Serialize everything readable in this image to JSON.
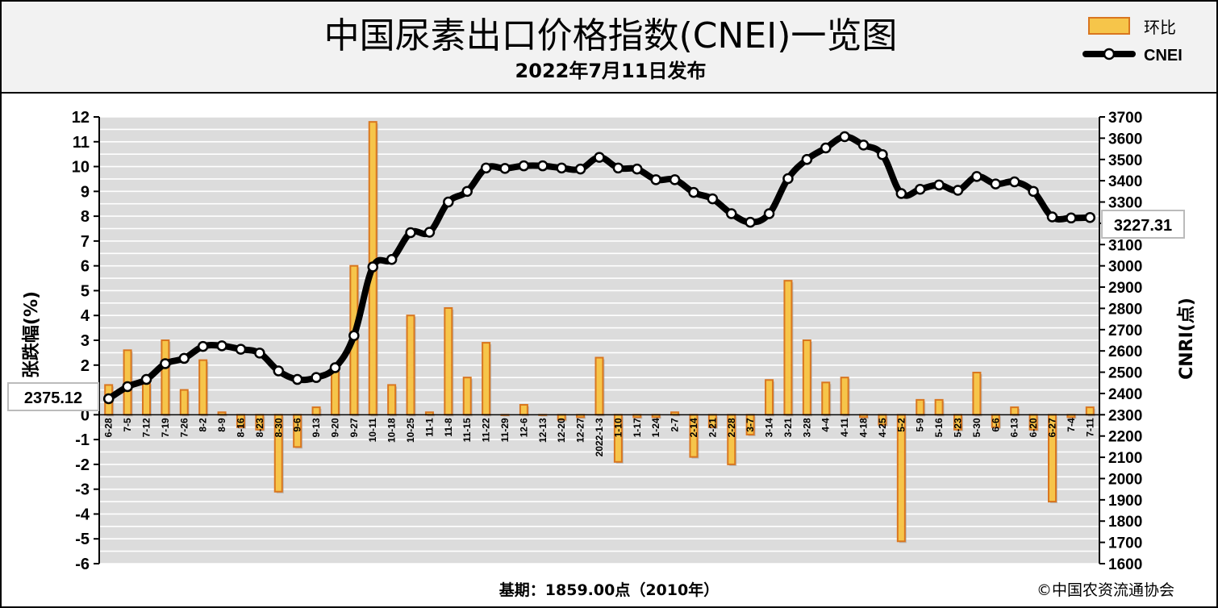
{
  "header": {
    "title": "中国尿素出口价格指数(CNEI)一览图",
    "subtitle": "2022年7月11日发布"
  },
  "legend": {
    "bar_label": "环比",
    "line_label": "CNEI"
  },
  "footer": {
    "base": "基期：1859.00点（2010年）",
    "copyright": "©中国农资流通协会"
  },
  "colors": {
    "bar_fill": "#f6c54a",
    "bar_edge": "#d9761f",
    "line": "#000000",
    "marker_fill": "#ffffff",
    "plot_bg": "#dcdcdc",
    "grid": "#ffffff"
  },
  "chart_data": {
    "type": "bar+line",
    "title": "中国尿素出口价格指数(CNEI)一览图",
    "subtitle": "2022年7月11日发布",
    "ylabel_left": "涨跌幅(%)",
    "ylabel_left_visible": "张跌幅(%)",
    "ylabel_right": "CNRI(点)",
    "ylim_left": [
      -6,
      12
    ],
    "ylim_right": [
      1600,
      3700
    ],
    "left_ticks": [
      12,
      11,
      10,
      9,
      8,
      7,
      6,
      5,
      4,
      3,
      2,
      1,
      0,
      -1,
      -2,
      -3,
      -4,
      -5,
      -6
    ],
    "right_ticks": [
      3700,
      3600,
      3500,
      3400,
      3300,
      3200,
      3100,
      3000,
      2900,
      2800,
      2700,
      2600,
      2500,
      2400,
      2300,
      2200,
      2100,
      2000,
      1900,
      1800,
      1700,
      1600
    ],
    "categories": [
      "6-28",
      "7-5",
      "7-12",
      "7-19",
      "7-26",
      "8-2",
      "8-9",
      "8-16",
      "8-23",
      "8-30",
      "9-6",
      "9-13",
      "9-20",
      "9-27",
      "10-11",
      "10-18",
      "10-25",
      "11-1",
      "11-8",
      "11-15",
      "11-22",
      "11-29",
      "12-6",
      "12-13",
      "12-20",
      "12-27",
      "2022-1-3",
      "1-10",
      "1-17",
      "1-24",
      "2-7",
      "2-14",
      "2-21",
      "2-28",
      "3-7",
      "3-14",
      "3-21",
      "3-28",
      "4-4",
      "4-11",
      "4-18",
      "4-25",
      "5-2",
      "5-9",
      "5-16",
      "5-23",
      "5-30",
      "6-6",
      "6-13",
      "6-20",
      "6-27",
      "7-4",
      "7-11"
    ],
    "series": [
      {
        "name": "环比",
        "type": "bar",
        "axis": "left",
        "values": [
          1.2,
          2.6,
          1.3,
          3.0,
          1.0,
          2.2,
          0.1,
          -0.5,
          -0.6,
          -3.1,
          -1.3,
          0.3,
          1.8,
          6.0,
          11.8,
          1.2,
          4.0,
          0.1,
          4.3,
          1.5,
          2.9,
          0.0,
          0.4,
          0.0,
          -0.2,
          -0.1,
          2.3,
          -1.9,
          -0.1,
          -0.1,
          0.1,
          -1.7,
          -0.5,
          -2.0,
          -0.8,
          1.4,
          5.4,
          3.0,
          1.3,
          1.5,
          -0.1,
          -0.4,
          -5.1,
          0.6,
          0.6,
          -0.6,
          1.7,
          -0.5,
          0.3,
          -0.6,
          -3.5,
          -0.1,
          0.3
        ]
      },
      {
        "name": "CNEI",
        "type": "line",
        "axis": "right",
        "values": [
          2375.12,
          2432,
          2466,
          2540,
          2565,
          2621,
          2624,
          2608,
          2590,
          2506,
          2466,
          2475,
          2521,
          2672,
          2995,
          3030,
          3156,
          3158,
          3300,
          3350,
          3460,
          3458,
          3470,
          3470,
          3460,
          3455,
          3510,
          3460,
          3455,
          3405,
          3405,
          3345,
          3315,
          3245,
          3205,
          3245,
          3410,
          3500,
          3554,
          3607,
          3568,
          3523,
          3340,
          3360,
          3380,
          3355,
          3420,
          3385,
          3395,
          3350,
          3230,
          3225,
          3227.31
        ]
      }
    ],
    "annotations": [
      {
        "text": "2375.12",
        "at_category": "6-28"
      },
      {
        "text": "3227.31",
        "at_category": "7-11"
      }
    ],
    "legend_position": "top-right",
    "grid": true
  }
}
